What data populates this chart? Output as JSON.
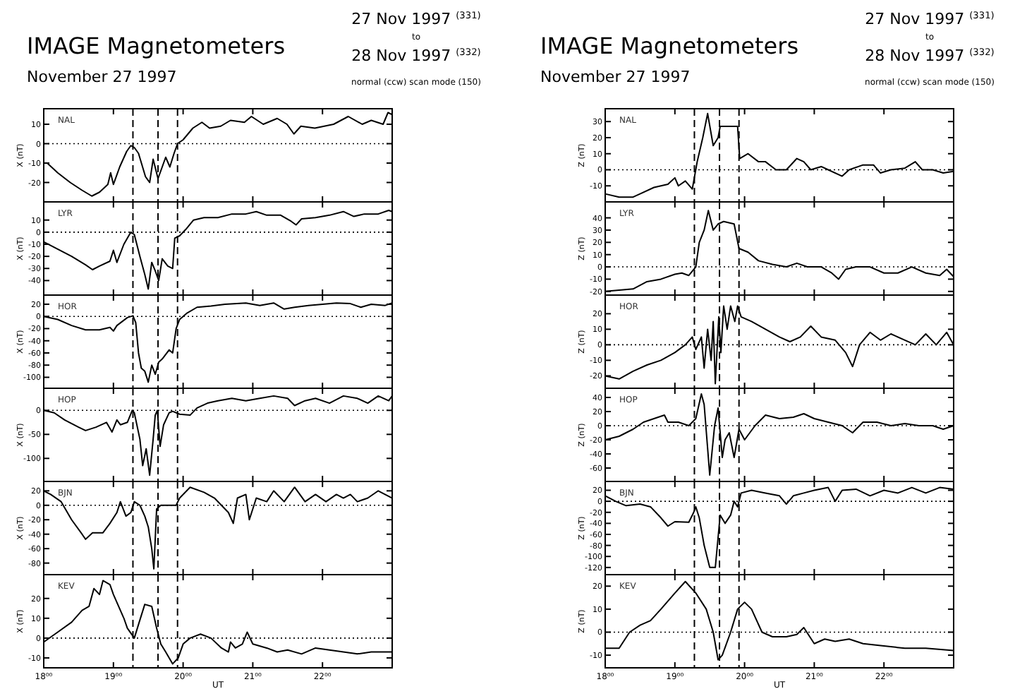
{
  "chart_data": [
    {
      "type": "line",
      "title": "NAL",
      "ylabel": "X (nT)",
      "annotations": [
        "IMAGE Magnetometers",
        "November 27 1997",
        "27 Nov 1997 $^{(331)}$",
        "to",
        "28 Nov 1997 $^{(332)}$",
        "normal (ccw) scan mode (150)"
      ],
      "tick_labels": "y",
      "xlim": [
        18,
        23
      ],
      "xticks": [
        {
          "value": 18,
          "label": null
        },
        {
          "value": 19,
          "label": null
        },
        {
          "value": 20,
          "label": null
        },
        {
          "value": 21,
          "label": null
        },
        {
          "value": 22,
          "label": null
        }
      ],
      "ylim": [
        -30,
        18
      ],
      "yticks": [
        -20,
        -10,
        0,
        10
      ],
      "color": "#000000",
      "x": [
        18,
        18.05,
        18.2,
        18.38,
        18.55,
        18.69,
        18.8,
        18.92,
        18.96,
        19,
        19.09,
        19.19,
        19.25,
        19.3,
        19.36,
        19.46,
        19.52,
        19.57,
        19.64,
        19.7,
        19.75,
        19.81,
        19.87,
        19.92,
        20,
        20.14,
        20.27,
        20.38,
        20.54,
        20.68,
        20.88,
        20.98,
        21.15,
        21.35,
        21.49,
        21.59,
        21.69,
        21.89,
        22.16,
        22.37,
        22.57,
        22.7,
        22.87,
        22.94,
        23
      ],
      "values": [
        -10,
        -10,
        -15,
        -20,
        -24,
        -27,
        -25,
        -21,
        -15,
        -21,
        -12,
        -4,
        -1,
        -2,
        -5,
        -17,
        -20,
        -8,
        -18,
        -12,
        -7,
        -12,
        -5,
        0,
        2,
        8,
        11,
        8,
        9,
        12,
        11,
        14,
        10,
        13,
        10,
        5,
        9,
        8,
        10,
        14,
        10,
        12,
        10,
        16,
        15
      ],
      "ref_lines": [
        {
          "axis": "y",
          "value": 0,
          "line_style": "dotted"
        },
        {
          "axis": "x",
          "value": 19.28,
          "line_style": "dashed"
        },
        {
          "axis": "x",
          "value": 19.64,
          "line_style": "dashed"
        },
        {
          "axis": "x",
          "value": 19.92,
          "line_style": "dashed"
        }
      ]
    },
    {
      "type": "line",
      "title": "LYR",
      "ylabel": "X (nT)",
      "tick_labels": "y",
      "xlim": [
        18,
        23
      ],
      "xticks": [
        {
          "value": 18,
          "label": null
        },
        {
          "value": 19,
          "label": null
        },
        {
          "value": 20,
          "label": null
        },
        {
          "value": 21,
          "label": null
        },
        {
          "value": 22,
          "label": null
        }
      ],
      "ylim": [
        -52,
        25
      ],
      "yticks": [
        -40,
        -30,
        -20,
        -10,
        0,
        10
      ],
      "color": "#000000",
      "x": [
        18,
        18.2,
        18.4,
        18.6,
        18.7,
        18.8,
        18.95,
        19,
        19.05,
        19.15,
        19.25,
        19.3,
        19.38,
        19.45,
        19.5,
        19.55,
        19.6,
        19.65,
        19.7,
        19.78,
        19.85,
        19.88,
        19.95,
        20.05,
        20.15,
        20.3,
        20.5,
        20.7,
        20.9,
        21.05,
        21.2,
        21.4,
        21.55,
        21.62,
        21.7,
        21.9,
        22.1,
        22.3,
        22.45,
        22.6,
        22.8,
        22.95,
        23
      ],
      "values": [
        -8,
        -14,
        -20,
        -27,
        -31,
        -28,
        -24,
        -15,
        -25,
        -10,
        0,
        -2,
        -20,
        -35,
        -47,
        -25,
        -32,
        -40,
        -22,
        -28,
        -30,
        -5,
        -3,
        3,
        10,
        12,
        12,
        15,
        15,
        17,
        14,
        14,
        9,
        6,
        11,
        12,
        14,
        17,
        13,
        15,
        15,
        18,
        17
      ],
      "ref_lines": [
        {
          "axis": "y",
          "value": 0,
          "line_style": "dotted"
        },
        {
          "axis": "x",
          "value": 19.28,
          "line_style": "dashed"
        },
        {
          "axis": "x",
          "value": 19.64,
          "line_style": "dashed"
        },
        {
          "axis": "x",
          "value": 19.92,
          "line_style": "dashed"
        }
      ]
    },
    {
      "type": "line",
      "title": "HOR",
      "ylabel": "X (nT)",
      "tick_labels": "y",
      "xlim": [
        18,
        23
      ],
      "xticks": [
        {
          "value": 18,
          "label": null
        },
        {
          "value": 19,
          "label": null
        },
        {
          "value": 20,
          "label": null
        },
        {
          "value": 21,
          "label": null
        },
        {
          "value": 22,
          "label": null
        }
      ],
      "ylim": [
        -118,
        35
      ],
      "yticks": [
        -100,
        -80,
        -60,
        -40,
        -20,
        0,
        20
      ],
      "color": "#000000",
      "x": [
        18,
        18.2,
        18.4,
        18.6,
        18.8,
        18.95,
        19,
        19.05,
        19.2,
        19.28,
        19.32,
        19.36,
        19.4,
        19.45,
        19.5,
        19.55,
        19.6,
        19.65,
        19.7,
        19.8,
        19.85,
        19.9,
        19.95,
        20.05,
        20.2,
        20.4,
        20.6,
        20.9,
        21.1,
        21.3,
        21.45,
        21.6,
        21.8,
        22,
        22.2,
        22.4,
        22.55,
        22.7,
        22.9,
        23
      ],
      "values": [
        0,
        -5,
        -15,
        -22,
        -22,
        -18,
        -24,
        -15,
        -2,
        1,
        -10,
        -60,
        -85,
        -90,
        -108,
        -80,
        -95,
        -75,
        -70,
        -55,
        -60,
        -20,
        -5,
        5,
        15,
        17,
        20,
        22,
        18,
        22,
        12,
        15,
        18,
        20,
        22,
        21,
        15,
        20,
        18,
        22
      ],
      "ref_lines": [
        {
          "axis": "y",
          "value": 0,
          "line_style": "dotted"
        },
        {
          "axis": "x",
          "value": 19.28,
          "line_style": "dashed"
        },
        {
          "axis": "x",
          "value": 19.64,
          "line_style": "dashed"
        },
        {
          "axis": "x",
          "value": 19.92,
          "line_style": "dashed"
        }
      ]
    },
    {
      "type": "line",
      "title": "HOP",
      "ylabel": "X (nT)",
      "tick_labels": "y",
      "xlim": [
        18,
        23
      ],
      "xticks": [
        {
          "value": 18,
          "label": null
        },
        {
          "value": 19,
          "label": null
        },
        {
          "value": 20,
          "label": null
        },
        {
          "value": 21,
          "label": null
        },
        {
          "value": 22,
          "label": null
        }
      ],
      "ylim": [
        -148,
        46
      ],
      "yticks": [
        -100,
        -50,
        0
      ],
      "color": "#000000",
      "x": [
        18,
        18.15,
        18.3,
        18.5,
        18.6,
        18.75,
        18.9,
        18.98,
        19.05,
        19.1,
        19.2,
        19.27,
        19.3,
        19.38,
        19.42,
        19.47,
        19.52,
        19.57,
        19.6,
        19.63,
        19.67,
        19.72,
        19.8,
        19.85,
        19.95,
        20.1,
        20.2,
        20.35,
        20.5,
        20.7,
        20.9,
        21.1,
        21.3,
        21.5,
        21.6,
        21.75,
        21.9,
        22.1,
        22.3,
        22.5,
        22.65,
        22.8,
        22.95,
        23
      ],
      "values": [
        0,
        -5,
        -20,
        -35,
        -42,
        -35,
        -25,
        -45,
        -20,
        -30,
        -25,
        0,
        -5,
        -60,
        -115,
        -80,
        -135,
        -60,
        -10,
        0,
        -75,
        -30,
        -5,
        -2,
        -8,
        -10,
        5,
        15,
        20,
        25,
        20,
        25,
        30,
        25,
        10,
        20,
        25,
        15,
        30,
        25,
        15,
        30,
        20,
        30
      ],
      "ref_lines": [
        {
          "axis": "y",
          "value": 0,
          "line_style": "dotted"
        },
        {
          "axis": "x",
          "value": 19.28,
          "line_style": "dashed"
        },
        {
          "axis": "x",
          "value": 19.64,
          "line_style": "dashed"
        },
        {
          "axis": "x",
          "value": 19.92,
          "line_style": "dashed"
        }
      ]
    },
    {
      "type": "line",
      "title": "BJN",
      "ylabel": "X (nT)",
      "tick_labels": "y",
      "xlim": [
        18,
        23
      ],
      "xticks": [
        {
          "value": 18,
          "label": null
        },
        {
          "value": 19,
          "label": null
        },
        {
          "value": 20,
          "label": null
        },
        {
          "value": 21,
          "label": null
        },
        {
          "value": 22,
          "label": null
        }
      ],
      "ylim": [
        -96,
        33
      ],
      "yticks": [
        -80,
        -60,
        -40,
        -20,
        0,
        20
      ],
      "color": "#000000",
      "x": [
        18,
        18.1,
        18.25,
        18.4,
        18.55,
        18.6,
        18.7,
        18.85,
        18.95,
        19.05,
        19.1,
        19.18,
        19.25,
        19.3,
        19.38,
        19.45,
        19.5,
        19.55,
        19.58,
        19.62,
        19.68,
        19.8,
        19.9,
        19.95,
        20.1,
        20.3,
        20.45,
        20.55,
        20.65,
        20.72,
        20.78,
        20.9,
        20.95,
        21.05,
        21.2,
        21.3,
        21.45,
        21.6,
        21.75,
        21.9,
        22.05,
        22.2,
        22.3,
        22.4,
        22.5,
        22.65,
        22.8,
        23
      ],
      "values": [
        20,
        15,
        5,
        -20,
        -40,
        -47,
        -38,
        -38,
        -25,
        -10,
        5,
        -15,
        -10,
        5,
        0,
        -15,
        -30,
        -60,
        -88,
        -5,
        0,
        0,
        0,
        10,
        25,
        18,
        10,
        0,
        -10,
        -25,
        10,
        15,
        -20,
        10,
        5,
        20,
        5,
        25,
        5,
        15,
        5,
        15,
        10,
        15,
        5,
        10,
        20,
        10
      ],
      "ref_lines": [
        {
          "axis": "y",
          "value": 0,
          "line_style": "dotted"
        },
        {
          "axis": "x",
          "value": 19.28,
          "line_style": "dashed"
        },
        {
          "axis": "x",
          "value": 19.64,
          "line_style": "dashed"
        },
        {
          "axis": "x",
          "value": 19.92,
          "line_style": "dashed"
        }
      ]
    },
    {
      "type": "line",
      "title": "KEV",
      "ylabel": "X (nT)",
      "xlabel": "UT",
      "xlim": [
        18,
        23
      ],
      "xticks": [
        {
          "value": 18,
          "label": "18⁰⁰"
        },
        {
          "value": 19,
          "label": "19⁰⁰"
        },
        {
          "value": 20,
          "label": "20⁰⁰"
        },
        {
          "value": 21,
          "label": "21⁰⁰"
        },
        {
          "value": 22,
          "label": "22⁰⁰"
        }
      ],
      "ylim": [
        -15,
        32
      ],
      "yticks": [
        -10,
        0,
        10,
        20
      ],
      "color": "#000000",
      "x": [
        18,
        18.2,
        18.4,
        18.55,
        18.65,
        18.72,
        18.8,
        18.85,
        18.95,
        19,
        19.1,
        19.15,
        19.2,
        19.3,
        19.37,
        19.45,
        19.55,
        19.62,
        19.68,
        19.75,
        19.85,
        19.93,
        20,
        20.1,
        20.25,
        20.4,
        20.55,
        20.65,
        20.68,
        20.75,
        20.85,
        20.92,
        21,
        21.2,
        21.35,
        21.5,
        21.7,
        21.9,
        22.1,
        22.3,
        22.5,
        22.7,
        23
      ],
      "values": [
        -2,
        3,
        8,
        14,
        16,
        25,
        22,
        29,
        27,
        22,
        14,
        10,
        5,
        0,
        8,
        17,
        16,
        5,
        -3,
        -7,
        -13,
        -10,
        -3,
        0,
        2,
        0,
        -5,
        -7,
        -2,
        -5,
        -3,
        3,
        -3,
        -5,
        -7,
        -6,
        -8,
        -5,
        -6,
        -7,
        -8,
        -7,
        -7
      ],
      "ref_lines": [
        {
          "axis": "y",
          "value": 0,
          "line_style": "dotted"
        },
        {
          "axis": "x",
          "value": 19.28,
          "line_style": "dashed"
        },
        {
          "axis": "x",
          "value": 19.64,
          "line_style": "dashed"
        },
        {
          "axis": "x",
          "value": 19.92,
          "line_style": "dashed"
        }
      ]
    },
    {
      "type": "line",
      "title": "NAL",
      "ylabel": "Z (nT)",
      "annotations": [
        "IMAGE Magnetometers",
        "November 27 1997",
        "27 Nov 1997 $^{(331)}$",
        "to",
        "28 Nov 1997 $^{(332)}$",
        "normal (ccw) scan mode (150)"
      ],
      "tick_labels": "y",
      "xlim": [
        18,
        23
      ],
      "xticks": [
        {
          "value": 18,
          "label": null
        },
        {
          "value": 19,
          "label": null
        },
        {
          "value": 20,
          "label": null
        },
        {
          "value": 21,
          "label": null
        },
        {
          "value": 22,
          "label": null
        }
      ],
      "ylim": [
        -20,
        38
      ],
      "yticks": [
        -10,
        0,
        10,
        20,
        30
      ],
      "color": "#000000",
      "x": [
        18,
        18.2,
        18.4,
        18.5,
        18.7,
        18.9,
        19,
        19.05,
        19.15,
        19.25,
        19.32,
        19.4,
        19.47,
        19.55,
        19.62,
        19.65,
        19.8,
        19.9,
        19.93,
        20.05,
        20.2,
        20.3,
        20.45,
        20.6,
        20.75,
        20.85,
        20.95,
        21.1,
        21.2,
        21.4,
        21.5,
        21.7,
        21.85,
        21.95,
        22.1,
        22.3,
        22.45,
        22.55,
        22.7,
        22.85,
        23
      ],
      "values": [
        -15,
        -17,
        -17,
        -15,
        -11,
        -9,
        -5,
        -10,
        -7,
        -12,
        5,
        20,
        35,
        15,
        20,
        27,
        27,
        27,
        7,
        10,
        5,
        5,
        0,
        0,
        7,
        5,
        0,
        2,
        0,
        -4,
        0,
        3,
        3,
        -2,
        0,
        1,
        5,
        0,
        0,
        -2,
        -1
      ],
      "ref_lines": [
        {
          "axis": "y",
          "value": 0,
          "line_style": "dotted"
        },
        {
          "axis": "x",
          "value": 19.28,
          "line_style": "dashed"
        },
        {
          "axis": "x",
          "value": 19.64,
          "line_style": "dashed"
        },
        {
          "axis": "x",
          "value": 19.92,
          "line_style": "dashed"
        }
      ]
    },
    {
      "type": "line",
      "title": "LYR",
      "ylabel": "Z (nT)",
      "tick_labels": "y",
      "xlim": [
        18,
        23
      ],
      "xticks": [
        {
          "value": 18,
          "label": null
        },
        {
          "value": 19,
          "label": null
        },
        {
          "value": 20,
          "label": null
        },
        {
          "value": 21,
          "label": null
        },
        {
          "value": 22,
          "label": null
        }
      ],
      "ylim": [
        -23,
        53
      ],
      "yticks": [
        -20,
        -10,
        0,
        10,
        20,
        30,
        40
      ],
      "color": "#000000",
      "x": [
        18,
        18.2,
        18.4,
        18.6,
        18.8,
        19,
        19.1,
        19.2,
        19.3,
        19.35,
        19.42,
        19.48,
        19.55,
        19.62,
        19.7,
        19.85,
        19.92,
        20.05,
        20.2,
        20.4,
        20.6,
        20.75,
        20.9,
        21.1,
        21.25,
        21.35,
        21.45,
        21.6,
        21.8,
        22,
        22.2,
        22.4,
        22.6,
        22.8,
        22.9,
        23
      ],
      "values": [
        -20,
        -19,
        -18,
        -12,
        -10,
        -6,
        -5,
        -7,
        0,
        20,
        30,
        46,
        30,
        35,
        37,
        35,
        15,
        12,
        5,
        2,
        0,
        3,
        0,
        0,
        -5,
        -10,
        -2,
        0,
        0,
        -5,
        -5,
        0,
        -5,
        -7,
        -2,
        -8
      ],
      "ref_lines": [
        {
          "axis": "y",
          "value": 0,
          "line_style": "dotted"
        },
        {
          "axis": "x",
          "value": 19.28,
          "line_style": "dashed"
        },
        {
          "axis": "x",
          "value": 19.64,
          "line_style": "dashed"
        },
        {
          "axis": "x",
          "value": 19.92,
          "line_style": "dashed"
        }
      ]
    },
    {
      "type": "line",
      "title": "HOR",
      "ylabel": "Z (nT)",
      "tick_labels": "y",
      "xlim": [
        18,
        23
      ],
      "xticks": [
        {
          "value": 18,
          "label": null
        },
        {
          "value": 19,
          "label": null
        },
        {
          "value": 20,
          "label": null
        },
        {
          "value": 21,
          "label": null
        },
        {
          "value": 22,
          "label": null
        }
      ],
      "ylim": [
        -28,
        32
      ],
      "yticks": [
        -20,
        -10,
        0,
        10,
        20
      ],
      "color": "#000000",
      "x": [
        18,
        18.2,
        18.4,
        18.6,
        18.8,
        19,
        19.15,
        19.25,
        19.3,
        19.38,
        19.42,
        19.47,
        19.52,
        19.55,
        19.58,
        19.63,
        19.66,
        19.7,
        19.75,
        19.8,
        19.86,
        19.9,
        19.95,
        20.1,
        20.3,
        20.5,
        20.65,
        20.8,
        20.95,
        21.1,
        21.3,
        21.45,
        21.55,
        21.65,
        21.8,
        21.95,
        22.1,
        22.3,
        22.45,
        22.6,
        22.75,
        22.9,
        23
      ],
      "values": [
        -20,
        -22,
        -17,
        -13,
        -10,
        -5,
        0,
        5,
        -3,
        5,
        -15,
        10,
        -10,
        15,
        -25,
        18,
        -5,
        25,
        10,
        25,
        15,
        25,
        18,
        15,
        10,
        5,
        2,
        5,
        12,
        5,
        3,
        -5,
        -14,
        0,
        8,
        3,
        7,
        3,
        0,
        7,
        0,
        8,
        0
      ],
      "ref_lines": [
        {
          "axis": "y",
          "value": 0,
          "line_style": "dotted"
        },
        {
          "axis": "x",
          "value": 19.28,
          "line_style": "dashed"
        },
        {
          "axis": "x",
          "value": 19.64,
          "line_style": "dashed"
        },
        {
          "axis": "x",
          "value": 19.92,
          "line_style": "dashed"
        }
      ]
    },
    {
      "type": "line",
      "title": "HOP",
      "ylabel": "Z (nT)",
      "tick_labels": "y",
      "xlim": [
        18,
        23
      ],
      "xticks": [
        {
          "value": 18,
          "label": null
        },
        {
          "value": 19,
          "label": null
        },
        {
          "value": 20,
          "label": null
        },
        {
          "value": 21,
          "label": null
        },
        {
          "value": 22,
          "label": null
        }
      ],
      "ylim": [
        -79,
        53
      ],
      "yticks": [
        -60,
        -40,
        -20,
        0,
        20,
        40
      ],
      "color": "#000000",
      "x": [
        18,
        18.2,
        18.4,
        18.55,
        18.7,
        18.85,
        18.9,
        19.05,
        19.2,
        19.3,
        19.38,
        19.42,
        19.5,
        19.57,
        19.62,
        19.68,
        19.72,
        19.78,
        19.85,
        19.92,
        20,
        20.15,
        20.3,
        20.5,
        20.7,
        20.85,
        21,
        21.2,
        21.4,
        21.55,
        21.7,
        21.9,
        22.1,
        22.3,
        22.5,
        22.7,
        22.85,
        23
      ],
      "values": [
        -20,
        -15,
        -5,
        5,
        10,
        15,
        5,
        5,
        0,
        10,
        45,
        30,
        -70,
        0,
        25,
        -45,
        -20,
        -10,
        -45,
        -5,
        -20,
        0,
        15,
        10,
        12,
        17,
        10,
        5,
        0,
        -10,
        5,
        5,
        0,
        3,
        0,
        0,
        -5,
        0
      ],
      "ref_lines": [
        {
          "axis": "y",
          "value": 0,
          "line_style": "dotted"
        },
        {
          "axis": "x",
          "value": 19.28,
          "line_style": "dashed"
        },
        {
          "axis": "x",
          "value": 19.64,
          "line_style": "dashed"
        },
        {
          "axis": "x",
          "value": 19.92,
          "line_style": "dashed"
        }
      ]
    },
    {
      "type": "line",
      "title": "BJN",
      "ylabel": "Z (nT)",
      "tick_labels": "y",
      "xlim": [
        18,
        23
      ],
      "xticks": [
        {
          "value": 18,
          "label": null
        },
        {
          "value": 19,
          "label": null
        },
        {
          "value": 20,
          "label": null
        },
        {
          "value": 21,
          "label": null
        },
        {
          "value": 22,
          "label": null
        }
      ],
      "ylim": [
        -133,
        36
      ],
      "yticks": [
        -120,
        -100,
        -80,
        -60,
        -40,
        -20,
        0,
        20
      ],
      "color": "#000000",
      "x": [
        18,
        18.15,
        18.3,
        18.5,
        18.65,
        18.8,
        18.9,
        19,
        19.2,
        19.27,
        19.3,
        19.35,
        19.42,
        19.5,
        19.58,
        19.65,
        19.72,
        19.8,
        19.85,
        19.9,
        19.95,
        20.1,
        20.3,
        20.5,
        20.6,
        20.7,
        20.85,
        21,
        21.2,
        21.3,
        21.4,
        21.6,
        21.8,
        22,
        22.2,
        22.4,
        22.6,
        22.8,
        23
      ],
      "values": [
        10,
        0,
        -8,
        -5,
        -10,
        -30,
        -45,
        -37,
        -38,
        -20,
        -10,
        -30,
        -80,
        -120,
        -120,
        -25,
        -40,
        -25,
        0,
        -10,
        15,
        20,
        15,
        10,
        -5,
        10,
        15,
        20,
        25,
        0,
        20,
        22,
        10,
        20,
        15,
        25,
        15,
        25,
        22
      ],
      "ref_lines": [
        {
          "axis": "y",
          "value": 0,
          "line_style": "dotted"
        },
        {
          "axis": "x",
          "value": 19.28,
          "line_style": "dashed"
        },
        {
          "axis": "x",
          "value": 19.64,
          "line_style": "dashed"
        },
        {
          "axis": "x",
          "value": 19.92,
          "line_style": "dashed"
        }
      ]
    },
    {
      "type": "line",
      "title": "KEV",
      "ylabel": "Z (nT)",
      "xlabel": "UT",
      "xlim": [
        18,
        23
      ],
      "xticks": [
        {
          "value": 18,
          "label": "18⁰⁰"
        },
        {
          "value": 19,
          "label": "19⁰⁰"
        },
        {
          "value": 20,
          "label": "20⁰⁰"
        },
        {
          "value": 21,
          "label": "21⁰⁰"
        },
        {
          "value": 22,
          "label": "22⁰⁰"
        }
      ],
      "ylim": [
        -15.5,
        25
      ],
      "yticks": [
        -10,
        0,
        10,
        20
      ],
      "color": "#000000",
      "x": [
        18,
        18.2,
        18.35,
        18.5,
        18.65,
        18.8,
        19,
        19.15,
        19.3,
        19.45,
        19.55,
        19.62,
        19.68,
        19.8,
        19.9,
        20,
        20.1,
        20.25,
        20.4,
        20.6,
        20.75,
        20.85,
        21,
        21.15,
        21.3,
        21.5,
        21.7,
        22,
        22.3,
        22.6,
        23
      ],
      "values": [
        -7,
        -7,
        0,
        3,
        5,
        10,
        17,
        22,
        17,
        10,
        0,
        -12,
        -10,
        0,
        10,
        13,
        10,
        0,
        -2,
        -2,
        -1,
        2,
        -5,
        -3,
        -4,
        -3,
        -5,
        -6,
        -7,
        -7,
        -8
      ],
      "ref_lines": [
        {
          "axis": "y",
          "value": 0,
          "line_style": "dotted"
        },
        {
          "axis": "x",
          "value": 19.28,
          "line_style": "dashed"
        },
        {
          "axis": "x",
          "value": 19.64,
          "line_style": "dashed"
        },
        {
          "axis": "x",
          "value": 19.92,
          "line_style": "dashed"
        }
      ]
    }
  ]
}
